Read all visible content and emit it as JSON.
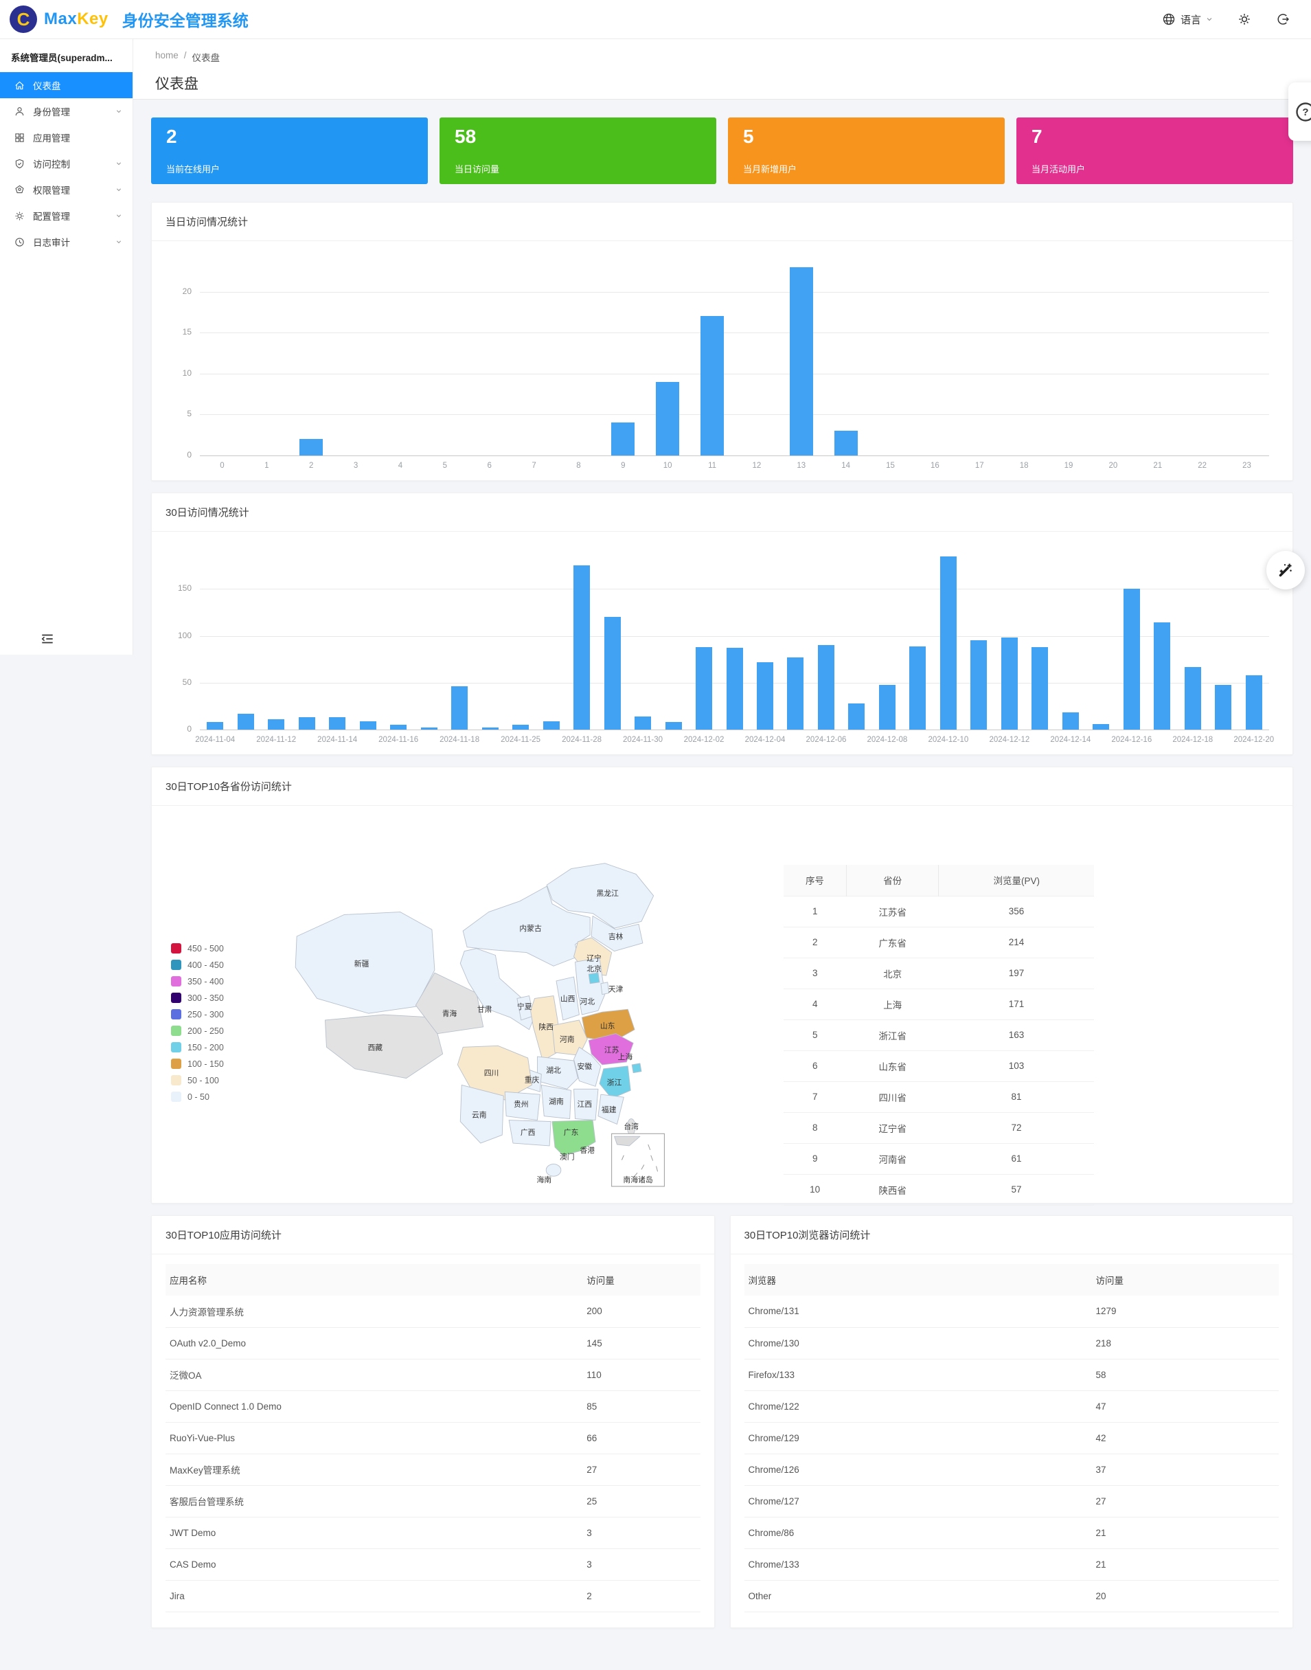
{
  "header": {
    "logo_letter": "C",
    "brand_max": "Max",
    "brand_key": "Key",
    "app_title": "身份安全管理系统",
    "language_label": "语言"
  },
  "sidebar": {
    "user": "系统管理员(superadm...",
    "items": [
      {
        "id": "dashboard",
        "label": "仪表盘",
        "icon": "home",
        "active": true,
        "has_children": false
      },
      {
        "id": "identity",
        "label": "身份管理",
        "icon": "user",
        "active": false,
        "has_children": true
      },
      {
        "id": "apps",
        "label": "应用管理",
        "icon": "appstore",
        "active": false,
        "has_children": false
      },
      {
        "id": "access",
        "label": "访问控制",
        "icon": "safety",
        "active": false,
        "has_children": true
      },
      {
        "id": "permission",
        "label": "权限管理",
        "icon": "property",
        "active": false,
        "has_children": true
      },
      {
        "id": "config",
        "label": "配置管理",
        "icon": "setting",
        "active": false,
        "has_children": true
      },
      {
        "id": "audit",
        "label": "日志审计",
        "icon": "clock",
        "active": false,
        "has_children": true
      }
    ]
  },
  "breadcrumb": {
    "home": "home",
    "separator": "/",
    "current": "仪表盘"
  },
  "page_title": "仪表盘",
  "stat_cards": [
    {
      "value": "2",
      "label": "当前在线用户",
      "color": "#2196F3"
    },
    {
      "value": "58",
      "label": "当日访问量",
      "color": "#4CBE1C"
    },
    {
      "value": "5",
      "label": "当月新增用户",
      "color": "#F7941D"
    },
    {
      "value": "7",
      "label": "当月活动用户",
      "color": "#E2308F"
    }
  ],
  "chart_data": [
    {
      "type": "bar",
      "title": "当日访问情况统计",
      "categories": [
        "0",
        "1",
        "2",
        "3",
        "4",
        "5",
        "6",
        "7",
        "8",
        "9",
        "10",
        "11",
        "12",
        "13",
        "14",
        "15",
        "16",
        "17",
        "18",
        "19",
        "20",
        "21",
        "22",
        "23"
      ],
      "values": [
        0,
        0,
        2,
        0,
        0,
        0,
        0,
        0,
        0,
        4,
        9,
        17,
        0,
        23,
        3,
        0,
        0,
        0,
        0,
        0,
        0,
        0,
        0,
        0
      ],
      "xlabel": "",
      "ylabel": "",
      "ylim": [
        0,
        24
      ],
      "y_ticks": [
        0,
        5,
        10,
        15,
        20
      ],
      "bar_color": "#41A2F4",
      "grid": true,
      "legend_position": "none"
    },
    {
      "type": "bar",
      "title": "30日访问情况统计",
      "values": [
        8,
        17,
        11,
        13,
        13,
        9,
        5,
        2,
        46,
        2,
        5,
        9,
        175,
        120,
        14,
        8,
        88,
        87,
        72,
        77,
        90,
        28,
        48,
        89,
        185,
        95,
        98,
        88,
        18,
        6,
        150,
        114,
        67,
        48,
        58
      ],
      "x_labels_visible": [
        "2024-11-04",
        "2024-11-12",
        "2024-11-14",
        "2024-11-16",
        "2024-11-18",
        "2024-11-25",
        "2024-11-28",
        "2024-11-30",
        "2024-12-02",
        "2024-12-04",
        "2024-12-06",
        "2024-12-08",
        "2024-12-10",
        "2024-12-12",
        "2024-12-14",
        "2024-12-16",
        "2024-12-18",
        "2024-12-20"
      ],
      "label_every": 2,
      "xlabel": "",
      "ylabel": "",
      "ylim": [
        0,
        192
      ],
      "y_ticks": [
        0,
        50,
        100,
        150
      ],
      "bar_color": "#41A2F4",
      "grid": true,
      "legend_position": "none"
    },
    {
      "type": "heatmap",
      "title": "30日TOP10各省份访问统计",
      "note": "choropleth map of China, visits (PV) by province over 30 days",
      "provinces": [
        {
          "id": "heilongjiang",
          "name": "黑龙江",
          "value": 0
        },
        {
          "id": "jilin",
          "name": "吉林",
          "value": 0
        },
        {
          "id": "liaoning",
          "name": "辽宁",
          "value": 72
        },
        {
          "id": "neimenggu",
          "name": "内蒙古",
          "value": 0
        },
        {
          "id": "xinjiang",
          "name": "新疆",
          "value": 0
        },
        {
          "id": "xizang",
          "name": "西藏",
          "value": null
        },
        {
          "id": "qinghai",
          "name": "青海",
          "value": null
        },
        {
          "id": "gansu",
          "name": "甘肃",
          "value": 0
        },
        {
          "id": "ningxia",
          "name": "宁夏",
          "value": 0
        },
        {
          "id": "shaanxi",
          "name": "陕西",
          "value": 57
        },
        {
          "id": "shanxi",
          "name": "山西",
          "value": 0
        },
        {
          "id": "hebei",
          "name": "河北",
          "value": 0
        },
        {
          "id": "beijing",
          "name": "北京",
          "value": 197
        },
        {
          "id": "tianjin",
          "name": "天津",
          "value": 0
        },
        {
          "id": "shandong",
          "name": "山东",
          "value": 103
        },
        {
          "id": "henan",
          "name": "河南",
          "value": 61
        },
        {
          "id": "jiangsu",
          "name": "江苏",
          "value": 356
        },
        {
          "id": "anhui",
          "name": "安徽",
          "value": 0
        },
        {
          "id": "shanghai",
          "name": "上海",
          "value": 171
        },
        {
          "id": "zhejiang",
          "name": "浙江",
          "value": 163
        },
        {
          "id": "hubei",
          "name": "湖北",
          "value": 0
        },
        {
          "id": "chongqing",
          "name": "重庆",
          "value": 0
        },
        {
          "id": "sichuan",
          "name": "四川",
          "value": 81
        },
        {
          "id": "hunan",
          "name": "湖南",
          "value": 0
        },
        {
          "id": "jiangxi",
          "name": "江西",
          "value": 0
        },
        {
          "id": "fujian",
          "name": "福建",
          "value": 0
        },
        {
          "id": "guizhou",
          "name": "贵州",
          "value": 0
        },
        {
          "id": "yunnan",
          "name": "云南",
          "value": 0
        },
        {
          "id": "guangxi",
          "name": "广西",
          "value": 0
        },
        {
          "id": "guangdong",
          "name": "广东",
          "value": 214
        },
        {
          "id": "hainan",
          "name": "海南",
          "value": 0
        },
        {
          "id": "taiwan",
          "name": "台湾",
          "value": null
        },
        {
          "id": "xianggang",
          "name": "香港",
          "value": 0
        },
        {
          "id": "aomen",
          "name": "澳门",
          "value": 0
        },
        {
          "id": "nanhai",
          "name": "南海诸岛",
          "value": null
        }
      ],
      "legend": [
        {
          "range": "450 - 500",
          "color": "#D2143F"
        },
        {
          "range": "400 - 450",
          "color": "#2F95BC"
        },
        {
          "range": "350 - 400",
          "color": "#E06EDD"
        },
        {
          "range": "300 - 350",
          "color": "#32006E"
        },
        {
          "range": "250 - 300",
          "color": "#5B6FE0"
        },
        {
          "range": "200 - 250",
          "color": "#8EDC8E"
        },
        {
          "range": "150 - 200",
          "color": "#6FD0E8"
        },
        {
          "range": "100 - 150",
          "color": "#DEA044"
        },
        {
          "range": "50 - 100",
          "color": "#F8E8CC"
        },
        {
          "range": "0 - 50",
          "color": "#E9F2FB"
        }
      ],
      "no_data_color": "#e2e2e2",
      "legend_position": "left"
    }
  ],
  "province_table": {
    "headers": [
      "序号",
      "省份",
      "浏览量(PV)"
    ],
    "rows": [
      [
        "1",
        "江苏省",
        "356"
      ],
      [
        "2",
        "广东省",
        "214"
      ],
      [
        "3",
        "北京",
        "197"
      ],
      [
        "4",
        "上海",
        "171"
      ],
      [
        "5",
        "浙江省",
        "163"
      ],
      [
        "6",
        "山东省",
        "103"
      ],
      [
        "7",
        "四川省",
        "81"
      ],
      [
        "8",
        "辽宁省",
        "72"
      ],
      [
        "9",
        "河南省",
        "61"
      ],
      [
        "10",
        "陕西省",
        "57"
      ]
    ]
  },
  "app_table": {
    "title": "30日TOP10应用访问统计",
    "headers": [
      "应用名称",
      "访问量"
    ],
    "rows": [
      [
        "人力资源管理系统",
        "200"
      ],
      [
        "OAuth v2.0_Demo",
        "145"
      ],
      [
        "泛微OA",
        "110"
      ],
      [
        "OpenID Connect 1.0 Demo",
        "85"
      ],
      [
        "RuoYi-Vue-Plus",
        "66"
      ],
      [
        "MaxKey管理系统",
        "27"
      ],
      [
        "客服后台管理系统",
        "25"
      ],
      [
        "JWT Demo",
        "3"
      ],
      [
        "CAS Demo",
        "3"
      ],
      [
        "Jira",
        "2"
      ]
    ]
  },
  "browser_table": {
    "title": "30日TOP10浏览器访问统计",
    "headers": [
      "浏览器",
      "访问量"
    ],
    "rows": [
      [
        "Chrome/131",
        "1279"
      ],
      [
        "Chrome/130",
        "218"
      ],
      [
        "Firefox/133",
        "58"
      ],
      [
        "Chrome/122",
        "47"
      ],
      [
        "Chrome/129",
        "42"
      ],
      [
        "Chrome/126",
        "37"
      ],
      [
        "Chrome/127",
        "27"
      ],
      [
        "Chrome/86",
        "21"
      ],
      [
        "Chrome/133",
        "21"
      ],
      [
        "Other",
        "20"
      ]
    ]
  }
}
